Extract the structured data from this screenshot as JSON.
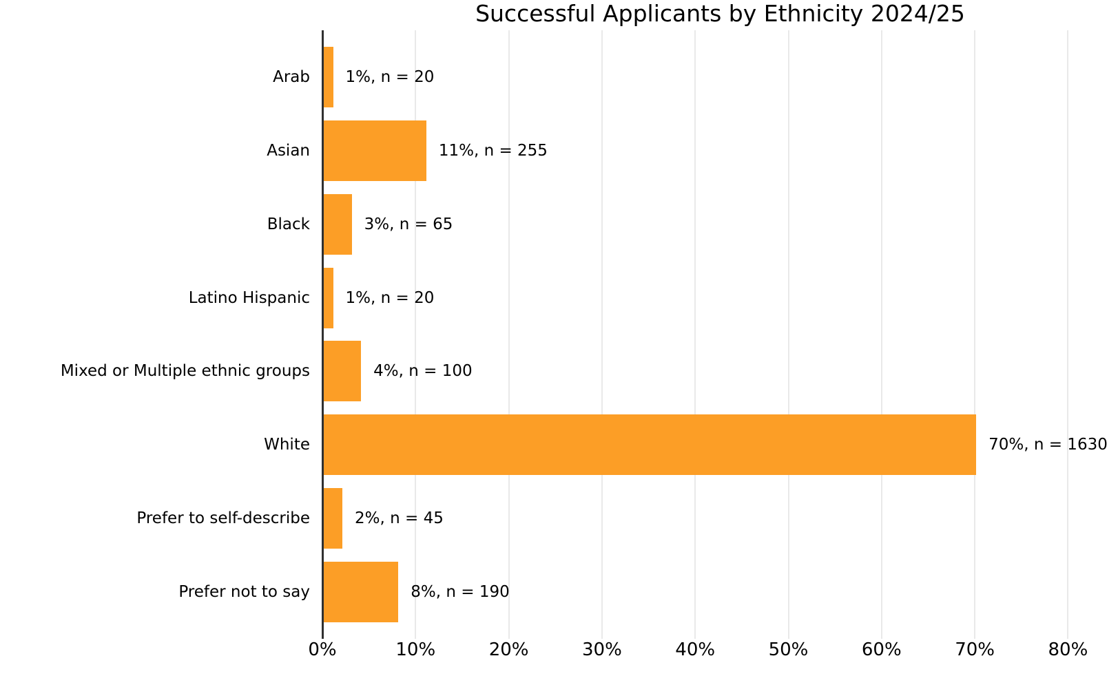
{
  "chart_data": {
    "type": "bar",
    "orientation": "horizontal",
    "title": "Successful Applicants by Ethnicity 2024/25",
    "categories": [
      "Arab",
      "Asian",
      "Black",
      "Latino Hispanic",
      "Mixed or Multiple ethnic groups",
      "White",
      "Prefer to self-describe",
      "Prefer not to say"
    ],
    "values": [
      1,
      11,
      3,
      1,
      4,
      70,
      2,
      8
    ],
    "counts": [
      20,
      255,
      65,
      20,
      100,
      1630,
      45,
      190
    ],
    "bar_labels": [
      "1%, n = 20",
      "11%, n = 255",
      "3%, n = 65",
      "1%, n = 20",
      "4%, n = 100",
      "70%, n = 1630",
      "2%, n = 45",
      "8%, n = 190"
    ],
    "x_tick_labels": [
      "0%",
      "10%",
      "20%",
      "30%",
      "40%",
      "50%",
      "60%",
      "70%",
      "80%"
    ],
    "x_tick_values": [
      0,
      10,
      20,
      30,
      40,
      50,
      60,
      70,
      80
    ],
    "xlim": [
      0,
      85.3
    ],
    "xlabel": "",
    "ylabel": "",
    "grid": true,
    "legend": "none",
    "bar_color": "#FC9E26",
    "gridline_color": "#E9E9E9",
    "axis_line_color": "#303030",
    "text_color": "#000000",
    "background_color": "#FFFFFF"
  }
}
